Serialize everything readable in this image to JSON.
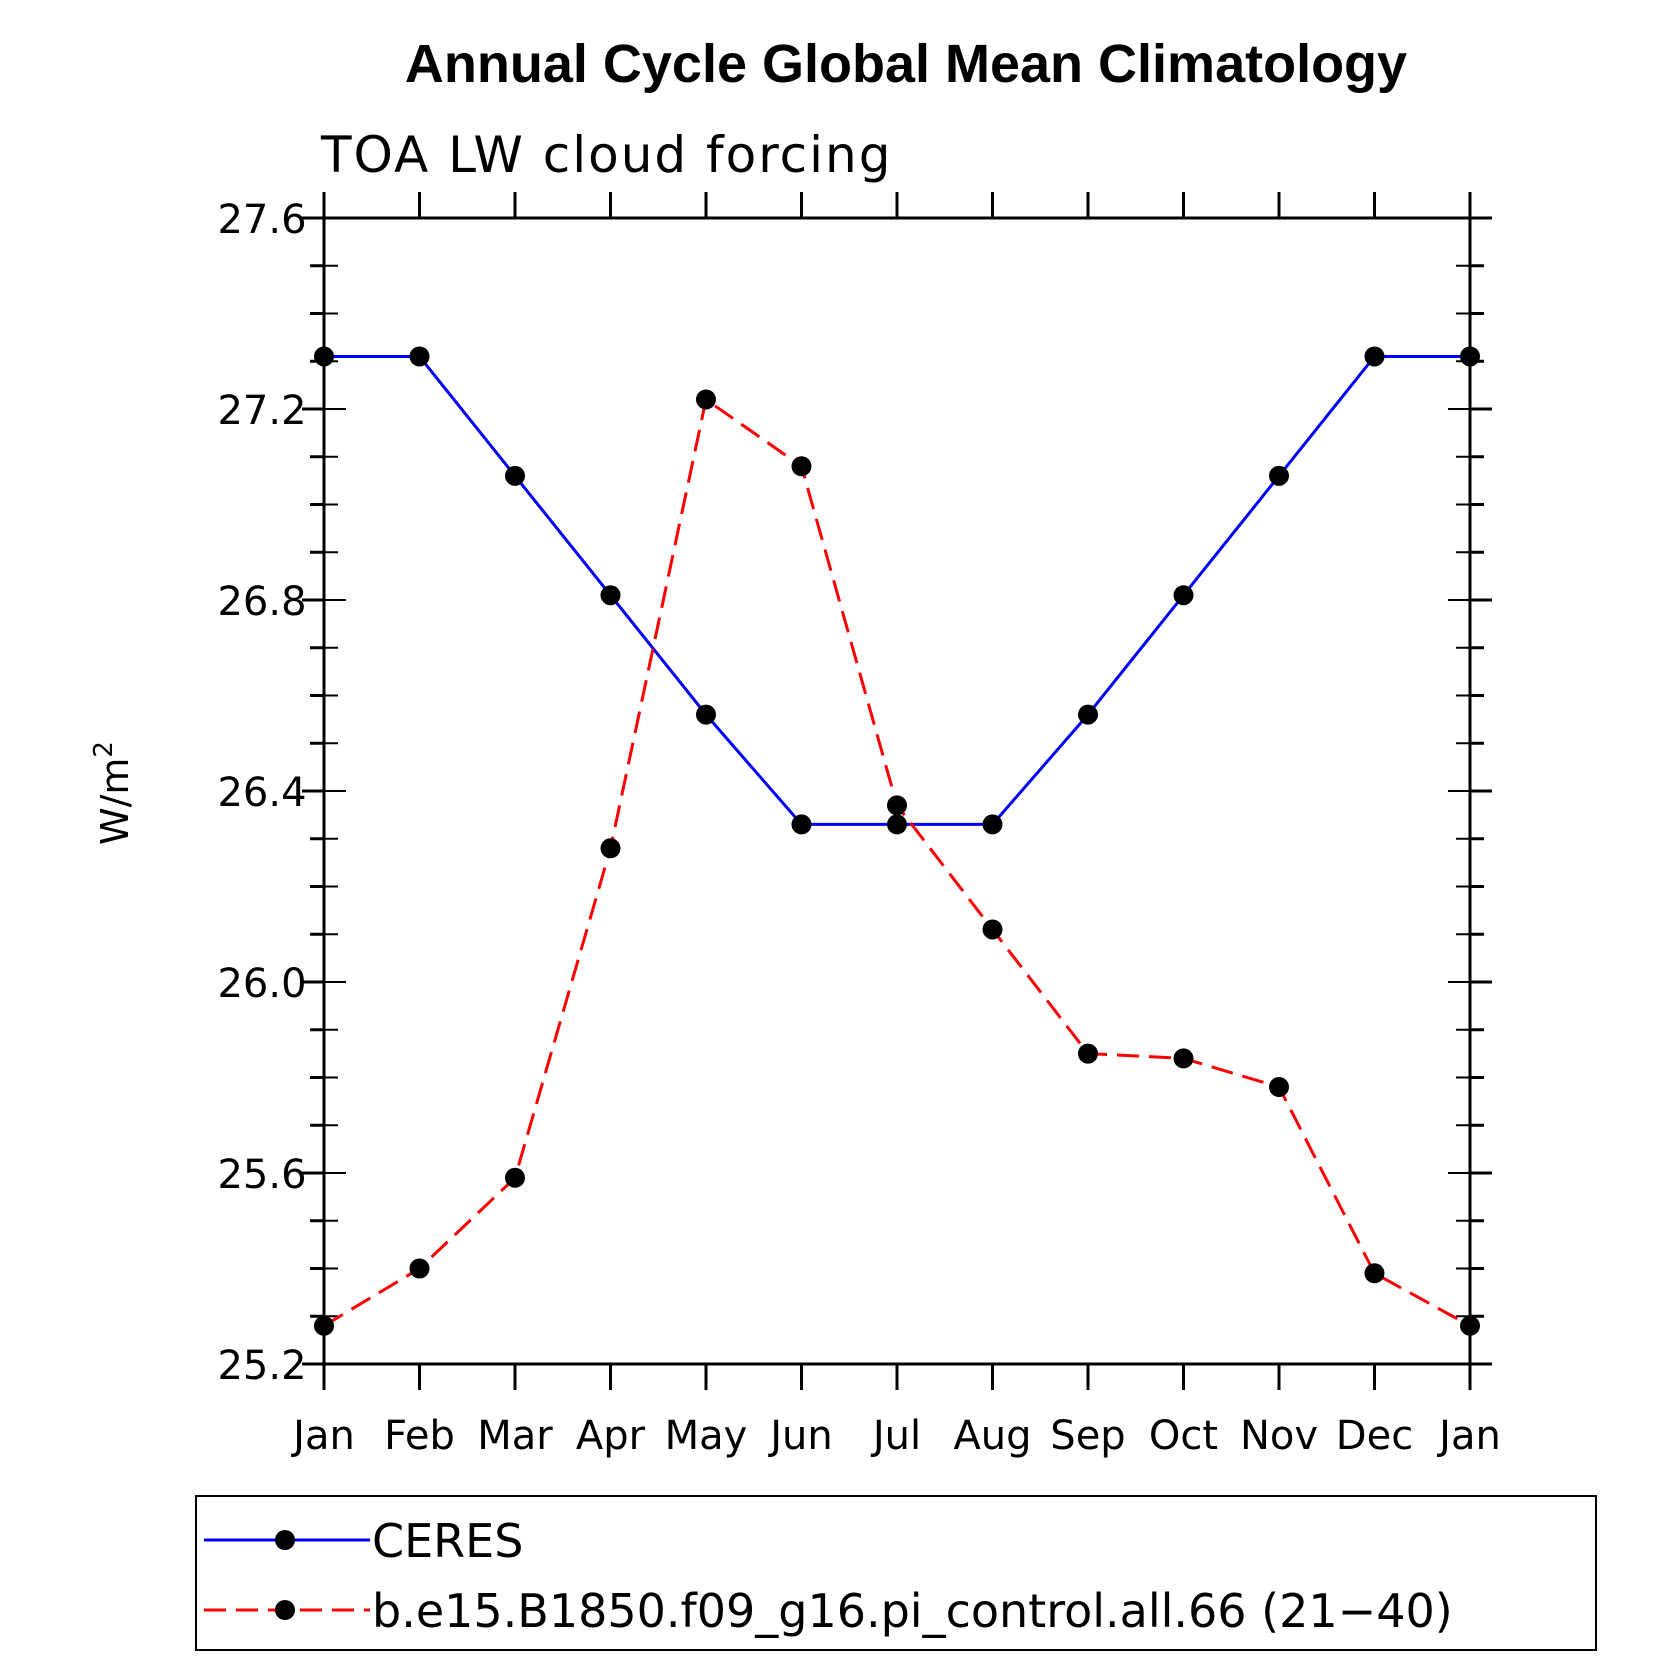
{
  "chart_data": {
    "type": "line",
    "title": "Annual Cycle Global Mean Climatology",
    "subtitle": "TOA LW cloud forcing",
    "xlabel": "",
    "ylabel": "W/m",
    "ylabel_superscript": "2",
    "ylim": [
      25.2,
      27.6
    ],
    "yticks": [
      "25.2",
      "25.6",
      "26.0",
      "26.4",
      "26.8",
      "27.2",
      "27.6"
    ],
    "ytick_values": [
      25.2,
      25.6,
      26.0,
      26.4,
      26.8,
      27.2,
      27.6
    ],
    "categories": [
      "Jan",
      "Feb",
      "Mar",
      "Apr",
      "May",
      "Jun",
      "Jul",
      "Aug",
      "Sep",
      "Oct",
      "Nov",
      "Dec",
      "Jan"
    ],
    "series": [
      {
        "name": "CERES",
        "color": "#0000ff",
        "dash": "solid",
        "marker_color": "#000000",
        "values": [
          27.31,
          27.31,
          27.06,
          26.81,
          26.56,
          26.33,
          26.33,
          26.33,
          26.56,
          26.81,
          27.06,
          27.31,
          27.31
        ]
      },
      {
        "name": "b.e15.B1850.f09_g16.pi_control.all.66 (21−40)",
        "color": "#ff0000",
        "dash": "dashed",
        "marker_color": "#000000",
        "values": [
          25.28,
          25.4,
          25.59,
          26.28,
          27.22,
          27.08,
          26.37,
          26.11,
          25.85,
          25.84,
          25.78,
          25.39,
          25.28
        ]
      }
    ]
  }
}
